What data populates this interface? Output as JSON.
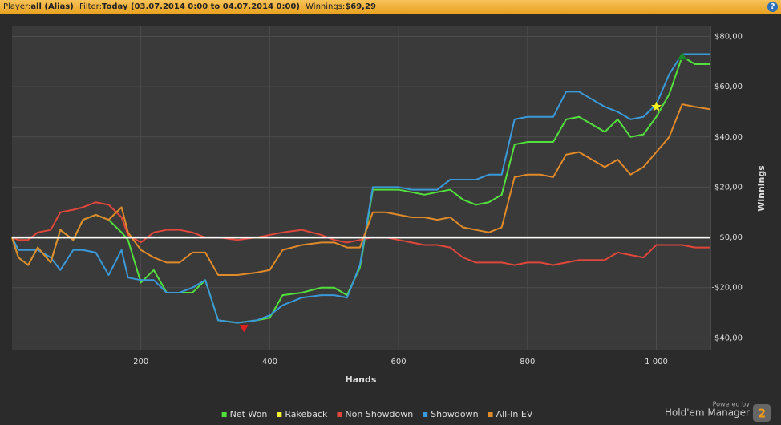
{
  "header": {
    "player_label": "Player:",
    "player_value": "all (Alias)",
    "filter_label": "Filter:",
    "filter_value": "Today (03.07.2014 0:00 to 04.07.2014 0:00)",
    "winnings_label": "Winnings:",
    "winnings_value": "$69,29",
    "help": "?"
  },
  "branding": {
    "powered_by": "Powered by",
    "name": "Hold'em Manager",
    "version": "2"
  },
  "chart_data": {
    "type": "line",
    "x_label": "Hands",
    "y_label": "Winnings",
    "xlim": [
      0,
      1084
    ],
    "ylim": [
      -45,
      84
    ],
    "xticks": [
      200,
      400,
      600,
      800,
      {
        "value": 1000,
        "label": "1 000"
      }
    ],
    "yticks": [
      {
        "value": -40,
        "label": "-$40,00"
      },
      {
        "value": -20,
        "label": "-$20,00"
      },
      {
        "value": 0,
        "label": "$0,00"
      },
      {
        "value": 20,
        "label": "$20,00"
      },
      {
        "value": 40,
        "label": "$40,00"
      },
      {
        "value": 60,
        "label": "$60,00"
      },
      {
        "value": 80,
        "label": "$80,00"
      }
    ],
    "grid": true,
    "zero_line": true,
    "legend": "bottom",
    "x": [
      0,
      10,
      25,
      40,
      60,
      75,
      95,
      110,
      130,
      150,
      170,
      180,
      200,
      220,
      240,
      260,
      280,
      300,
      320,
      350,
      380,
      400,
      420,
      450,
      480,
      500,
      520,
      540,
      560,
      580,
      600,
      620,
      640,
      660,
      680,
      700,
      720,
      740,
      760,
      780,
      800,
      820,
      840,
      860,
      880,
      900,
      920,
      940,
      960,
      980,
      1000,
      1020,
      1040,
      1060,
      1084
    ],
    "series": [
      {
        "name": "Net Won",
        "color": "#52e03c",
        "values": [
          0,
          -8,
          -11,
          -4,
          -10,
          3,
          -1,
          7,
          9,
          7,
          2,
          -1,
          -18,
          -13,
          -22,
          -22,
          -22,
          -17,
          -33,
          -34,
          -33,
          -32,
          -23,
          -22,
          -20,
          -20,
          -23,
          -12,
          19,
          19,
          19,
          18,
          17,
          18,
          19,
          15,
          13,
          14,
          17,
          37,
          38,
          38,
          38,
          47,
          48,
          45,
          42,
          47,
          40,
          41,
          48,
          57,
          72,
          69,
          69
        ]
      },
      {
        "name": "Rakeback",
        "color": "#f2f230",
        "values": [
          0,
          0,
          0,
          0,
          0,
          0,
          0,
          0,
          0,
          0,
          0,
          0,
          0,
          0,
          0,
          0,
          0,
          0,
          0,
          0,
          0,
          0,
          0,
          0,
          0,
          0,
          0,
          0,
          0,
          0,
          0,
          0,
          0,
          0,
          0,
          0,
          0,
          0,
          0,
          0,
          0,
          0,
          0,
          0,
          0,
          0,
          0,
          0,
          0,
          0,
          0,
          0,
          0,
          0,
          0
        ]
      },
      {
        "name": "Non Showdown",
        "color": "#e0473a",
        "values": [
          0,
          -1,
          -1,
          2,
          3,
          10,
          11,
          12,
          14,
          13,
          8,
          1,
          -2,
          2,
          3,
          3,
          2,
          0,
          0,
          -1,
          0,
          1,
          2,
          3,
          1,
          -1,
          -2,
          -1,
          0,
          0,
          -1,
          -2,
          -3,
          -3,
          -4,
          -8,
          -10,
          -10,
          -10,
          -11,
          -10,
          -10,
          -11,
          -10,
          -9,
          -9,
          -9,
          -6,
          -7,
          -8,
          -3,
          -3,
          -3,
          -4,
          -4
        ]
      },
      {
        "name": "Showdown",
        "color": "#3a9ad9",
        "values": [
          0,
          -5,
          -5,
          -5,
          -8,
          -13,
          -5,
          -5,
          -6,
          -15,
          -5,
          -16,
          -17,
          -17,
          -22,
          -22,
          -20,
          -17,
          -33,
          -34,
          -33,
          -31,
          -27,
          -24,
          -23,
          -23,
          -24,
          -11,
          20,
          20,
          20,
          19,
          19,
          19,
          23,
          23,
          23,
          25,
          25,
          47,
          48,
          48,
          48,
          58,
          58,
          55,
          52,
          50,
          47,
          48,
          53,
          65,
          73,
          73,
          73
        ]
      },
      {
        "name": "All-In EV",
        "color": "#e08a2a",
        "values": [
          0,
          -8,
          -11,
          -4,
          -10,
          3,
          -1,
          7,
          9,
          7,
          12,
          2,
          -5,
          -8,
          -10,
          -10,
          -6,
          -6,
          -15,
          -15,
          -14,
          -13,
          -5,
          -3,
          -2,
          -2,
          -4,
          -4,
          10,
          10,
          9,
          8,
          8,
          7,
          8,
          4,
          3,
          2,
          4,
          24,
          25,
          25,
          24,
          33,
          34,
          31,
          28,
          31,
          25,
          28,
          34,
          40,
          53,
          52,
          51
        ]
      }
    ],
    "markers": [
      {
        "x": 360,
        "y": -36,
        "color": "#e02020",
        "shape": "triangle-down"
      },
      {
        "x": 1040,
        "y": 72,
        "color": "#1a8a2a",
        "shape": "triangle-up"
      },
      {
        "x": 1000,
        "y": 52,
        "color": "#f5f020",
        "shape": "star"
      }
    ]
  }
}
